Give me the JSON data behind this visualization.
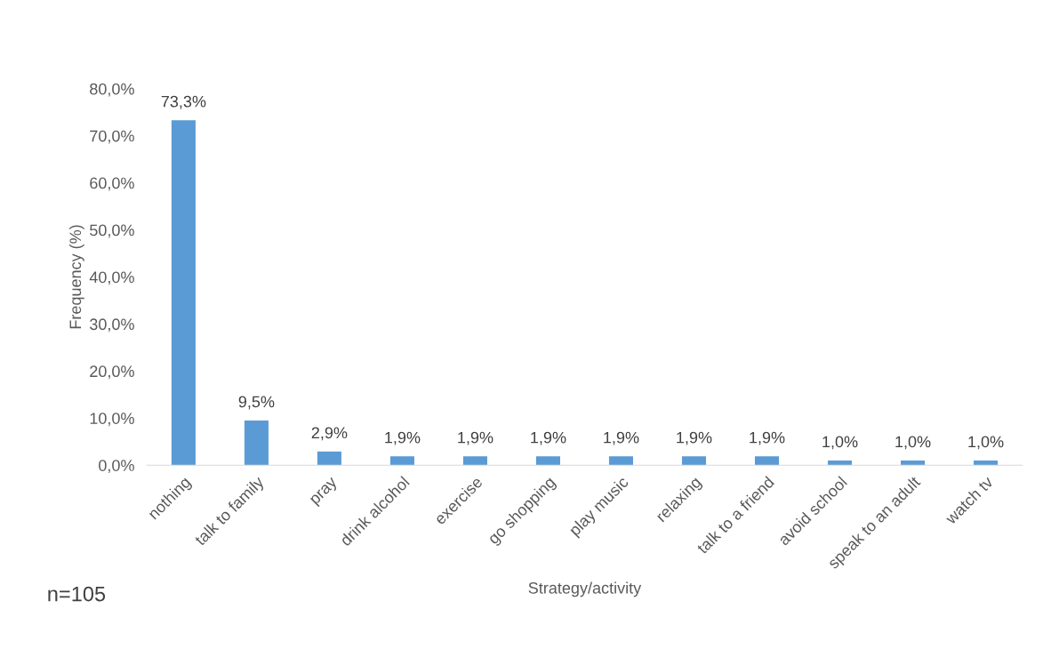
{
  "chart_data": {
    "type": "bar",
    "categories": [
      "nothing",
      "talk to family",
      "pray",
      "drink alcohol",
      "exercise",
      "go shopping",
      "play music",
      "relaxing",
      "talk to a friend",
      "avoid school",
      "speak to an adult",
      "watch tv"
    ],
    "values": [
      73.3,
      9.5,
      2.9,
      1.9,
      1.9,
      1.9,
      1.9,
      1.9,
      1.9,
      1.0,
      1.0,
      1.0
    ],
    "value_labels": [
      "73,3%",
      "9,5%",
      "2,9%",
      "1,9%",
      "1,9%",
      "1,9%",
      "1,9%",
      "1,9%",
      "1,9%",
      "1,0%",
      "1,0%",
      "1,0%"
    ],
    "color": "#5b9bd5",
    "xlabel": "Strategy/activity",
    "ylabel": "Frequency (%)",
    "ylim": [
      0,
      80
    ],
    "yticks": [
      {
        "value": 0,
        "label": "0,0%"
      },
      {
        "value": 10,
        "label": "10,0%"
      },
      {
        "value": 20,
        "label": "20,0%"
      },
      {
        "value": 30,
        "label": "30,0%"
      },
      {
        "value": 40,
        "label": "40,0%"
      },
      {
        "value": 50,
        "label": "50,0%"
      },
      {
        "value": 60,
        "label": "60,0%"
      },
      {
        "value": 70,
        "label": "70,0%"
      },
      {
        "value": 80,
        "label": "80,0%"
      }
    ],
    "annotations": [
      "n=105"
    ],
    "grid": false,
    "legend": false
  }
}
